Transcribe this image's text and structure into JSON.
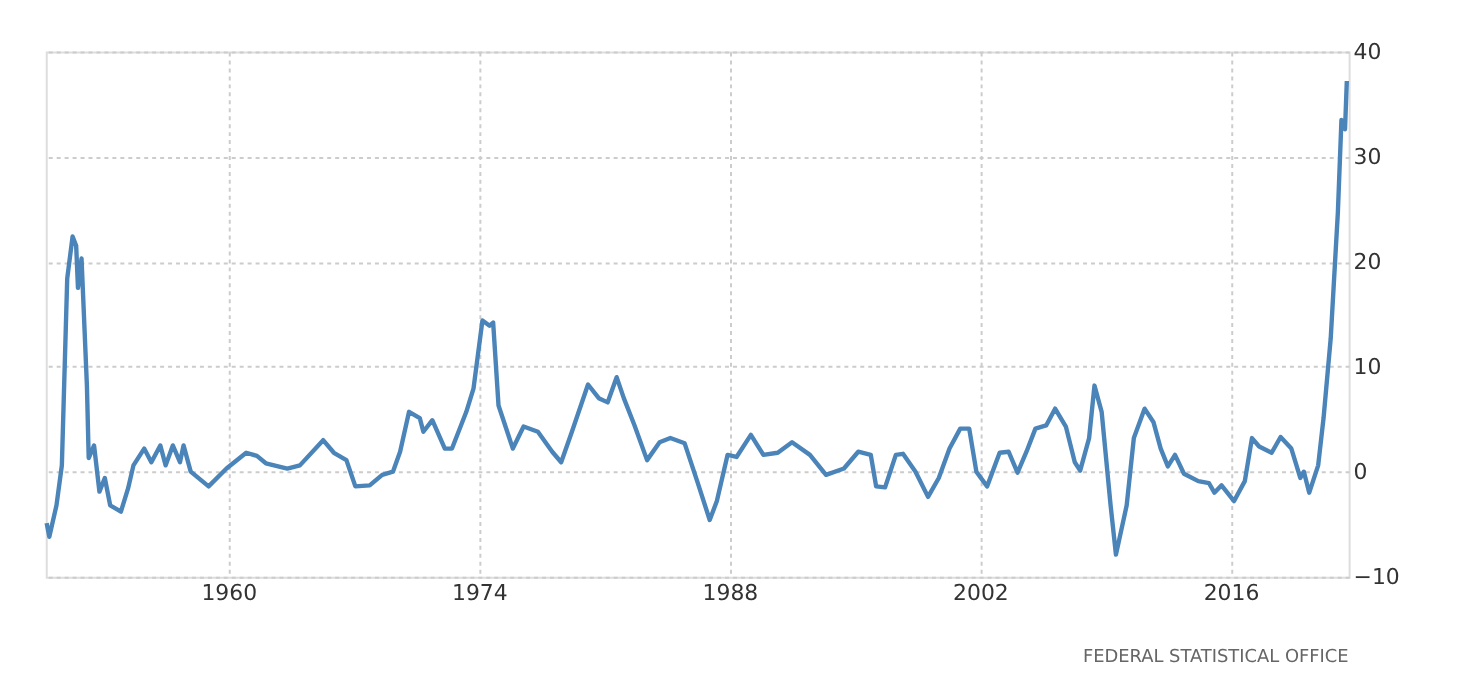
{
  "chart_data": {
    "type": "line",
    "x": [
      1949.85,
      1950.0,
      1950.4,
      1950.7,
      1951.0,
      1951.3,
      1951.5,
      1951.6,
      1951.8,
      1952.1,
      1952.2,
      1952.5,
      1952.8,
      1953.1,
      1953.4,
      1954.0,
      1954.4,
      1954.7,
      1955.3,
      1955.7,
      1956.2,
      1956.5,
      1956.9,
      1957.3,
      1957.5,
      1957.9,
      1958.9,
      1959.9,
      1961.0,
      1961.6,
      1962.1,
      1963.3,
      1964.0,
      1965.3,
      1965.9,
      1966.6,
      1967.1,
      1967.9,
      1968.6,
      1969.2,
      1969.6,
      1970.1,
      1970.7,
      1970.9,
      1971.4,
      1972.1,
      1972.5,
      1973.3,
      1973.7,
      1974.2,
      1974.6,
      1974.8,
      1975.1,
      1975.9,
      1976.5,
      1977.3,
      1978.1,
      1978.6,
      1979.2,
      1980.1,
      1980.7,
      1981.2,
      1981.7,
      1982.1,
      1982.7,
      1983.4,
      1984.1,
      1984.7,
      1985.5,
      1986.2,
      1986.9,
      1987.3,
      1987.9,
      1988.4,
      1989.2,
      1989.9,
      1990.7,
      1991.5,
      1992.5,
      1993.4,
      1994.4,
      1995.2,
      1995.9,
      1996.2,
      1996.7,
      1997.3,
      1997.7,
      1998.4,
      1999.1,
      1999.7,
      2000.3,
      2000.9,
      2001.4,
      2001.8,
      2002.4,
      2003.1,
      2003.6,
      2004.1,
      2004.6,
      2005.1,
      2005.7,
      2006.2,
      2006.8,
      2007.3,
      2007.6,
      2008.1,
      2008.4,
      2008.8,
      2009.3,
      2009.6,
      2010.2,
      2010.6,
      2011.2,
      2011.7,
      2012.1,
      2012.5,
      2012.9,
      2013.4,
      2014.2,
      2014.8,
      2015.1,
      2015.5,
      2016.2,
      2016.8,
      2017.2,
      2017.6,
      2018.3,
      2018.8,
      2019.4,
      2019.9,
      2020.1,
      2020.4,
      2020.9,
      2021.2,
      2021.6,
      2022.0,
      2022.2,
      2022.4,
      2022.5
    ],
    "series": [
      {
        "color": "#4a84b8",
        "values": [
          -4.9,
          -6.2,
          -3.2,
          0.6,
          18.4,
          22.4,
          21.5,
          17.5,
          20.3,
          8.2,
          1.3,
          2.5,
          -1.9,
          -0.6,
          -3.2,
          -3.8,
          -1.6,
          0.6,
          2.2,
          0.9,
          2.5,
          0.6,
          2.5,
          0.9,
          2.5,
          0.0,
          -1.4,
          0.3,
          1.8,
          1.5,
          0.8,
          0.3,
          0.6,
          3.0,
          1.8,
          1.1,
          -1.4,
          -1.3,
          -0.3,
          0.0,
          1.9,
          5.7,
          5.1,
          3.8,
          4.9,
          2.2,
          2.2,
          5.7,
          7.9,
          14.4,
          13.9,
          14.2,
          6.3,
          2.2,
          4.3,
          3.8,
          1.9,
          0.9,
          3.8,
          8.3,
          7.0,
          6.6,
          9.0,
          7.0,
          4.4,
          1.1,
          2.8,
          3.2,
          2.7,
          -0.9,
          -4.6,
          -2.8,
          1.6,
          1.4,
          3.5,
          1.6,
          1.8,
          2.8,
          1.6,
          -0.3,
          0.3,
          1.9,
          1.6,
          -1.4,
          -1.5,
          1.6,
          1.7,
          0.0,
          -2.4,
          -0.6,
          2.2,
          4.1,
          4.1,
          0.0,
          -1.4,
          1.8,
          1.9,
          -0.1,
          1.9,
          4.1,
          4.4,
          6.0,
          4.3,
          0.9,
          0.1,
          3.2,
          8.2,
          5.7,
          -3.2,
          -7.9,
          -3.2,
          3.2,
          6.0,
          4.7,
          2.2,
          0.5,
          1.6,
          -0.2,
          -0.9,
          -1.1,
          -2.0,
          -1.3,
          -2.8,
          -0.9,
          3.2,
          2.4,
          1.8,
          3.3,
          2.2,
          -0.6,
          0.0,
          -2.0,
          0.6,
          5.1,
          12.7,
          24.7,
          33.5,
          32.6,
          37.2
        ]
      }
    ],
    "xlim": [
      1949.8,
      2022.6
    ],
    "xticks": [
      1960,
      1974,
      1988,
      2002,
      2016
    ],
    "ylim": [
      -10,
      40
    ],
    "yticks": [
      -10,
      0,
      10,
      20,
      30,
      40
    ],
    "grid": true,
    "line_style": "solid",
    "annotations": [
      "FEDERAL STATISTICAL OFFICE"
    ]
  }
}
